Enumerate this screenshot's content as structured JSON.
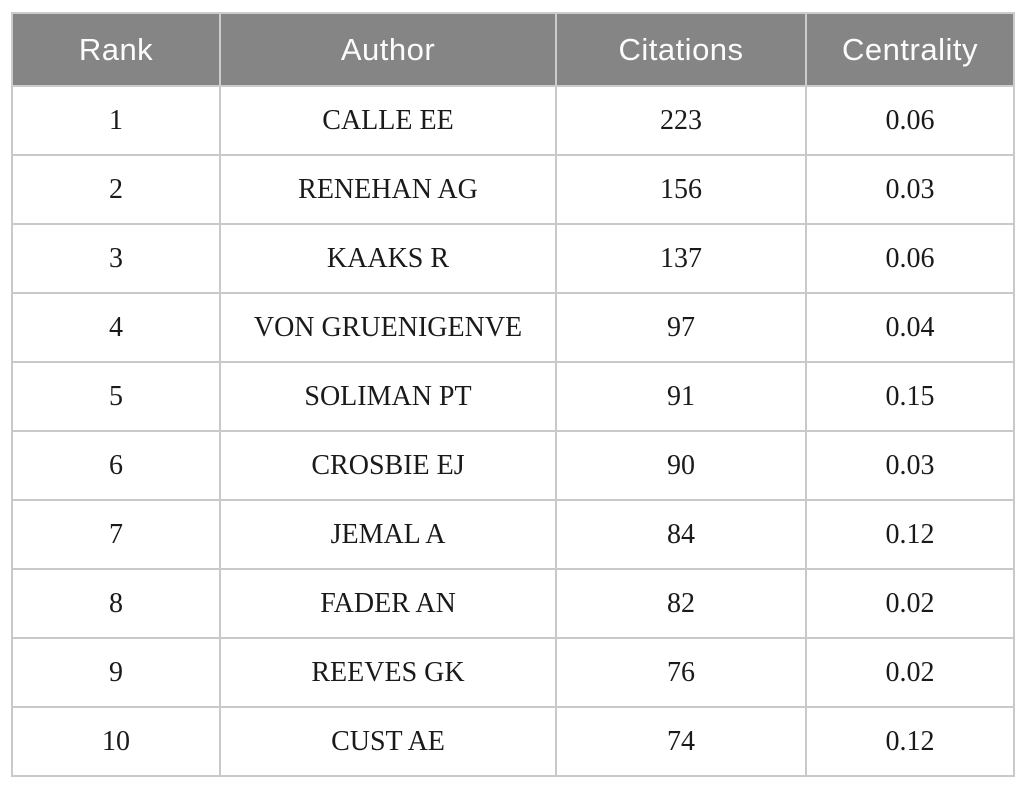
{
  "colors": {
    "header_bg": "#858585",
    "header_text": "#fcfcfc",
    "border": "#c9c9c9",
    "body_text": "#1a1a1a",
    "page_bg": "#ffffff"
  },
  "table": {
    "columns": [
      "Rank",
      "Author",
      "Citations",
      "Centrality"
    ],
    "rows": [
      {
        "rank": "1",
        "author": "CALLE EE",
        "citations": "223",
        "centrality": "0.06"
      },
      {
        "rank": "2",
        "author": "RENEHAN AG",
        "citations": "156",
        "centrality": "0.03"
      },
      {
        "rank": "3",
        "author": "KAAKS R",
        "citations": "137",
        "centrality": "0.06"
      },
      {
        "rank": "4",
        "author": "VON GRUENIGENVE",
        "citations": "97",
        "centrality": "0.04"
      },
      {
        "rank": "5",
        "author": "SOLIMAN PT",
        "citations": "91",
        "centrality": "0.15"
      },
      {
        "rank": "6",
        "author": "CROSBIE EJ",
        "citations": "90",
        "centrality": "0.03"
      },
      {
        "rank": "7",
        "author": "JEMAL A",
        "citations": "84",
        "centrality": "0.12"
      },
      {
        "rank": "8",
        "author": "FADER AN",
        "citations": "82",
        "centrality": "0.02"
      },
      {
        "rank": "9",
        "author": "REEVES GK",
        "citations": "76",
        "centrality": "0.02"
      },
      {
        "rank": "10",
        "author": "CUST AE",
        "citations": "74",
        "centrality": "0.12"
      }
    ]
  },
  "chart_data": {
    "type": "table",
    "title": "",
    "columns": [
      "Rank",
      "Author",
      "Citations",
      "Centrality"
    ],
    "rows": [
      [
        1,
        "CALLE EE",
        223,
        0.06
      ],
      [
        2,
        "RENEHAN AG",
        156,
        0.03
      ],
      [
        3,
        "KAAKS R",
        137,
        0.06
      ],
      [
        4,
        "VON GRUENIGENVE",
        97,
        0.04
      ],
      [
        5,
        "SOLIMAN PT",
        91,
        0.15
      ],
      [
        6,
        "CROSBIE EJ",
        90,
        0.03
      ],
      [
        7,
        "JEMAL A",
        84,
        0.12
      ],
      [
        8,
        "FADER AN",
        82,
        0.02
      ],
      [
        9,
        "REEVES GK",
        76,
        0.02
      ],
      [
        10,
        "CUST AE",
        74,
        0.12
      ]
    ]
  }
}
